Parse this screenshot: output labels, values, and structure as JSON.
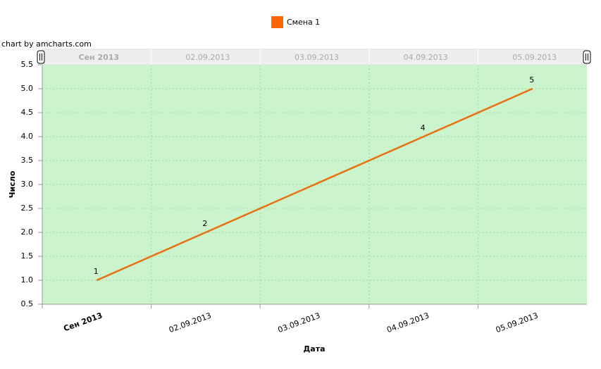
{
  "chart_data": {
    "type": "line",
    "credit": "chart by amcharts.com",
    "xlabel": "Дата",
    "ylabel": "Число",
    "categories": [
      "Сен 2013",
      "02.09.2013",
      "03.09.2013",
      "04.09.2013",
      "05.09.2013"
    ],
    "series": [
      {
        "name": "Смена 1",
        "color": "#ff6600",
        "line_color": "#e8700e",
        "values": [
          1,
          2,
          3,
          4,
          5
        ],
        "value_labels": [
          "1",
          "2",
          null,
          "4",
          "5"
        ]
      }
    ],
    "ylim": [
      0.5,
      5.5
    ],
    "yticks": [
      0.5,
      {
        "value": 1,
        "label": "1.0"
      },
      1.5,
      {
        "value": 2,
        "label": "2.0"
      },
      2.5,
      {
        "value": 3,
        "label": "3.0"
      },
      3.5,
      {
        "value": 4,
        "label": "4.0"
      },
      4.5,
      {
        "value": 5,
        "label": "5.0"
      },
      5.5
    ],
    "grid": true,
    "plot_background": "#ccf4cc",
    "legend": "top",
    "scrollbar": true
  }
}
